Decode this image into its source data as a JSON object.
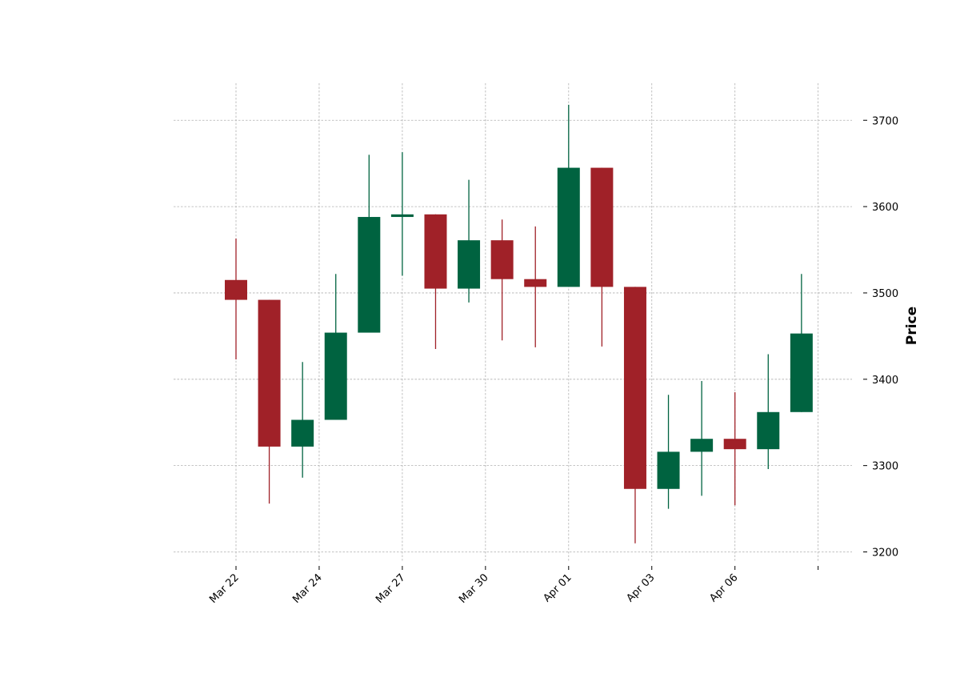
{
  "chart_data": {
    "type": "candlestick",
    "title": "",
    "xlabel": "",
    "ylabel": "Price",
    "ylim": [
      3185,
      3745
    ],
    "y_ticks": [
      3200,
      3300,
      3400,
      3500,
      3600,
      3700
    ],
    "x_tick_labels": [
      "Mar 22",
      "Mar 24",
      "Mar 27",
      "Mar 30",
      "Apr 01",
      "Apr 03",
      "Apr 06",
      ""
    ],
    "x_tick_positions": [
      0,
      2.5,
      5,
      7.5,
      10,
      12.5,
      15,
      17.5
    ],
    "grid": true,
    "colors": {
      "up": "#006340",
      "down": "#a02128"
    },
    "candles": [
      {
        "open": 3515,
        "high": 3563,
        "low": 3423,
        "close": 3492
      },
      {
        "open": 3492,
        "high": 3492,
        "low": 3256,
        "close": 3322
      },
      {
        "open": 3322,
        "high": 3420,
        "low": 3286,
        "close": 3353
      },
      {
        "open": 3353,
        "high": 3522,
        "low": 3353,
        "close": 3454
      },
      {
        "open": 3454,
        "high": 3660,
        "low": 3454,
        "close": 3588
      },
      {
        "open": 3588,
        "high": 3663,
        "low": 3520,
        "close": 3591
      },
      {
        "open": 3591,
        "high": 3591,
        "low": 3435,
        "close": 3505
      },
      {
        "open": 3505,
        "high": 3631,
        "low": 3489,
        "close": 3561
      },
      {
        "open": 3561,
        "high": 3585,
        "low": 3445,
        "close": 3516
      },
      {
        "open": 3516,
        "high": 3577,
        "low": 3437,
        "close": 3507
      },
      {
        "open": 3507,
        "high": 3718,
        "low": 3507,
        "close": 3645
      },
      {
        "open": 3645,
        "high": 3645,
        "low": 3438,
        "close": 3507
      },
      {
        "open": 3507,
        "high": 3507,
        "low": 3210,
        "close": 3273
      },
      {
        "open": 3273,
        "high": 3382,
        "low": 3250,
        "close": 3316
      },
      {
        "open": 3316,
        "high": 3398,
        "low": 3265,
        "close": 3331
      },
      {
        "open": 3331,
        "high": 3385,
        "low": 3254,
        "close": 3319
      },
      {
        "open": 3319,
        "high": 3429,
        "low": 3296,
        "close": 3362
      },
      {
        "open": 3362,
        "high": 3522,
        "low": 3362,
        "close": 3453
      }
    ]
  }
}
